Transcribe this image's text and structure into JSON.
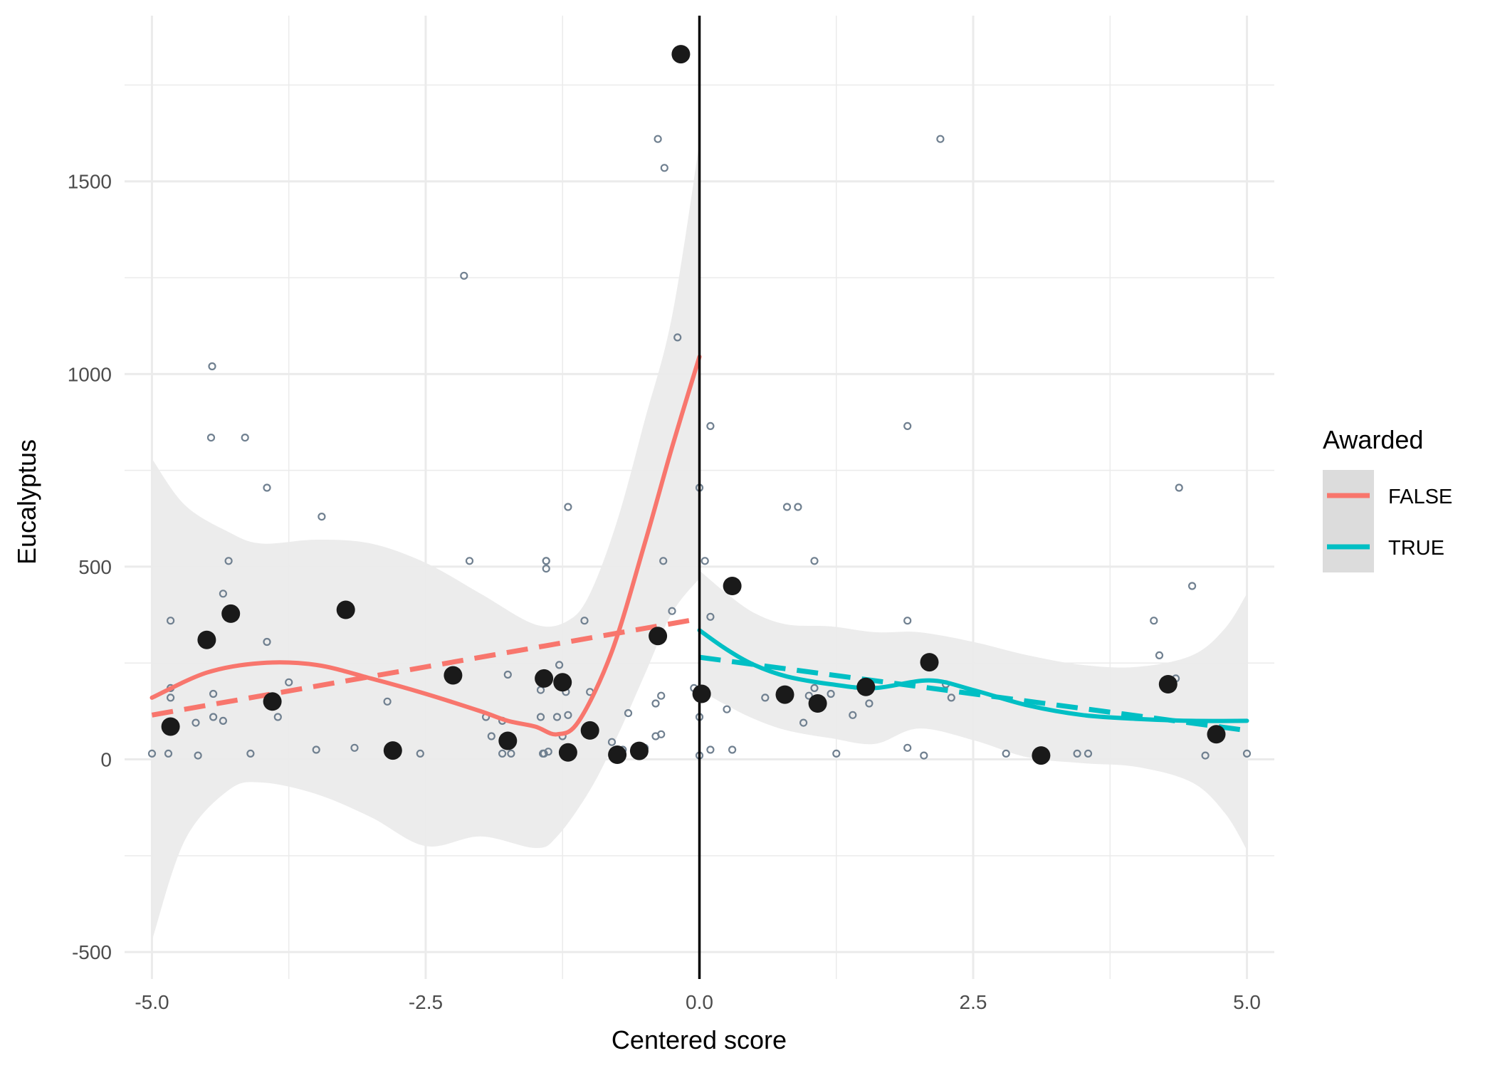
{
  "chart_data": {
    "type": "scatter",
    "xlabel": "Centered score",
    "ylabel": "Eucalyptus",
    "xlim": [
      -5.25,
      5.25
    ],
    "ylim": [
      -570,
      1930
    ],
    "x_ticks": [
      -5.0,
      -2.5,
      0.0,
      2.5,
      5.0
    ],
    "x_tick_labels": [
      "-5.0",
      "-2.5",
      "0.0",
      "2.5",
      "5.0"
    ],
    "y_ticks": [
      -500,
      0,
      500,
      1000,
      1500
    ],
    "y_tick_labels": [
      "-500",
      "0",
      "500",
      "1000",
      "1500"
    ],
    "grid": true,
    "cutoff_x": 0,
    "legend": {
      "title": "Awarded",
      "position": "right",
      "entries": [
        {
          "label": "FALSE",
          "color": "#F8766D"
        },
        {
          "label": "TRUE",
          "color": "#00BFC4"
        }
      ]
    },
    "colors": {
      "FALSE": "#F8766D",
      "TRUE": "#00BFC4",
      "band": "#EBEBEB",
      "points": "#1a1a1a",
      "raw_points": "#708090"
    },
    "raw_points": [
      [
        -5.0,
        15
      ],
      [
        -4.85,
        15
      ],
      [
        -4.83,
        185
      ],
      [
        -4.83,
        160
      ],
      [
        -4.83,
        360
      ],
      [
        -4.6,
        95
      ],
      [
        -4.58,
        10
      ],
      [
        -4.45,
        1020
      ],
      [
        -4.46,
        835
      ],
      [
        -4.44,
        170
      ],
      [
        -4.44,
        110
      ],
      [
        -4.35,
        100
      ],
      [
        -4.35,
        430
      ],
      [
        -4.3,
        515
      ],
      [
        -4.15,
        835
      ],
      [
        -4.1,
        15
      ],
      [
        -3.95,
        705
      ],
      [
        -3.95,
        305
      ],
      [
        -3.85,
        110
      ],
      [
        -3.75,
        200
      ],
      [
        -3.5,
        25
      ],
      [
        -3.45,
        630
      ],
      [
        -3.15,
        30
      ],
      [
        -2.85,
        150
      ],
      [
        -2.55,
        15
      ],
      [
        -2.15,
        1255
      ],
      [
        -2.1,
        515
      ],
      [
        -1.95,
        110
      ],
      [
        -1.9,
        60
      ],
      [
        -1.8,
        15
      ],
      [
        -1.8,
        100
      ],
      [
        -1.75,
        220
      ],
      [
        -1.72,
        15
      ],
      [
        -1.45,
        110
      ],
      [
        -1.45,
        180
      ],
      [
        -1.43,
        15
      ],
      [
        -1.42,
        15
      ],
      [
        -1.4,
        515
      ],
      [
        -1.4,
        515
      ],
      [
        -1.4,
        495
      ],
      [
        -1.38,
        20
      ],
      [
        -1.3,
        110
      ],
      [
        -1.28,
        245
      ],
      [
        -1.25,
        60
      ],
      [
        -1.22,
        175
      ],
      [
        -1.2,
        115
      ],
      [
        -1.2,
        655
      ],
      [
        -1.05,
        360
      ],
      [
        -1.0,
        175
      ],
      [
        -0.8,
        45
      ],
      [
        -0.75,
        15
      ],
      [
        -0.7,
        25
      ],
      [
        -0.65,
        120
      ],
      [
        -0.5,
        30
      ],
      [
        -0.4,
        60
      ],
      [
        -0.4,
        145
      ],
      [
        -0.38,
        1610
      ],
      [
        -0.35,
        65
      ],
      [
        -0.35,
        165
      ],
      [
        -0.33,
        515
      ],
      [
        -0.32,
        1535
      ],
      [
        -0.25,
        385
      ],
      [
        -0.2,
        1095
      ],
      [
        -0.05,
        185
      ],
      [
        0.0,
        705
      ],
      [
        0.0,
        110
      ],
      [
        0.0,
        10
      ],
      [
        0.05,
        515
      ],
      [
        0.1,
        25
      ],
      [
        0.1,
        865
      ],
      [
        0.1,
        370
      ],
      [
        0.25,
        130
      ],
      [
        0.3,
        25
      ],
      [
        0.6,
        160
      ],
      [
        0.8,
        655
      ],
      [
        0.9,
        655
      ],
      [
        0.95,
        95
      ],
      [
        1.0,
        165
      ],
      [
        1.05,
        185
      ],
      [
        1.05,
        515
      ],
      [
        1.2,
        170
      ],
      [
        1.25,
        15
      ],
      [
        1.4,
        115
      ],
      [
        1.55,
        145
      ],
      [
        1.9,
        30
      ],
      [
        1.9,
        865
      ],
      [
        1.9,
        360
      ],
      [
        2.05,
        10
      ],
      [
        2.2,
        1610
      ],
      [
        2.25,
        195
      ],
      [
        2.3,
        160
      ],
      [
        2.8,
        15
      ],
      [
        3.15,
        15
      ],
      [
        3.45,
        15
      ],
      [
        3.55,
        15
      ],
      [
        4.15,
        360
      ],
      [
        4.2,
        270
      ],
      [
        4.35,
        210
      ],
      [
        4.38,
        705
      ],
      [
        4.5,
        450
      ],
      [
        4.62,
        10
      ],
      [
        5.0,
        15
      ]
    ],
    "binned_means": [
      [
        -4.83,
        85
      ],
      [
        -4.5,
        310
      ],
      [
        -4.28,
        378
      ],
      [
        -3.9,
        150
      ],
      [
        -3.23,
        388
      ],
      [
        -2.8,
        23
      ],
      [
        -2.25,
        218
      ],
      [
        -1.75,
        48
      ],
      [
        -1.42,
        210
      ],
      [
        -1.25,
        200
      ],
      [
        -1.2,
        18
      ],
      [
        -1.0,
        75
      ],
      [
        -0.75,
        12
      ],
      [
        -0.55,
        22
      ],
      [
        -0.38,
        320
      ],
      [
        -0.17,
        1830
      ],
      [
        0.02,
        170
      ],
      [
        0.3,
        450
      ],
      [
        0.78,
        168
      ],
      [
        1.08,
        145
      ],
      [
        1.52,
        188
      ],
      [
        2.1,
        252
      ],
      [
        3.12,
        10
      ],
      [
        4.28,
        195
      ],
      [
        4.72,
        65
      ]
    ],
    "series": [
      {
        "name": "FALSE",
        "loess": [
          [
            -5.0,
            160
          ],
          [
            -4.5,
            225
          ],
          [
            -4.0,
            250
          ],
          [
            -3.5,
            245
          ],
          [
            -3.0,
            210
          ],
          [
            -2.5,
            170
          ],
          [
            -2.0,
            125
          ],
          [
            -1.75,
            100
          ],
          [
            -1.5,
            85
          ],
          [
            -1.3,
            65
          ],
          [
            -1.1,
            100
          ],
          [
            -0.8,
            280
          ],
          [
            -0.5,
            560
          ],
          [
            -0.25,
            810
          ],
          [
            0.0,
            1045
          ]
        ],
        "band_upper": [
          [
            -5.0,
            780
          ],
          [
            -4.7,
            660
          ],
          [
            -4.3,
            590
          ],
          [
            -4.0,
            560
          ],
          [
            -3.5,
            570
          ],
          [
            -3.0,
            560
          ],
          [
            -2.5,
            510
          ],
          [
            -2.0,
            430
          ],
          [
            -1.5,
            350
          ],
          [
            -1.2,
            360
          ],
          [
            -1.0,
            430
          ],
          [
            -0.75,
            620
          ],
          [
            -0.5,
            880
          ],
          [
            -0.25,
            1150
          ],
          [
            0.0,
            1600
          ]
        ],
        "band_lower": [
          [
            -5.0,
            -470
          ],
          [
            -4.7,
            -210
          ],
          [
            -4.3,
            -80
          ],
          [
            -4.0,
            -60
          ],
          [
            -3.5,
            -90
          ],
          [
            -3.0,
            -150
          ],
          [
            -2.5,
            -225
          ],
          [
            -2.0,
            -200
          ],
          [
            -1.5,
            -230
          ],
          [
            -1.3,
            -200
          ],
          [
            -1.0,
            -80
          ],
          [
            -0.75,
            60
          ],
          [
            -0.5,
            220
          ],
          [
            -0.25,
            380
          ],
          [
            0.0,
            470
          ]
        ],
        "linear": [
          [
            -5.0,
            115
          ],
          [
            0.0,
            365
          ]
        ]
      },
      {
        "name": "TRUE",
        "loess": [
          [
            0.0,
            335
          ],
          [
            0.25,
            285
          ],
          [
            0.5,
            245
          ],
          [
            0.8,
            215
          ],
          [
            1.2,
            195
          ],
          [
            1.6,
            185
          ],
          [
            2.1,
            205
          ],
          [
            2.5,
            180
          ],
          [
            3.0,
            140
          ],
          [
            3.5,
            115
          ],
          [
            4.0,
            105
          ],
          [
            4.5,
            100
          ],
          [
            5.0,
            100
          ]
        ],
        "band_upper": [
          [
            0.0,
            490
          ],
          [
            0.25,
            430
          ],
          [
            0.5,
            380
          ],
          [
            0.8,
            350
          ],
          [
            1.2,
            345
          ],
          [
            1.6,
            330
          ],
          [
            2.0,
            330
          ],
          [
            2.5,
            305
          ],
          [
            3.0,
            270
          ],
          [
            3.5,
            245
          ],
          [
            4.0,
            240
          ],
          [
            4.5,
            270
          ],
          [
            4.8,
            340
          ],
          [
            5.0,
            430
          ]
        ],
        "band_lower": [
          [
            0.0,
            180
          ],
          [
            0.25,
            140
          ],
          [
            0.5,
            105
          ],
          [
            0.8,
            75
          ],
          [
            1.2,
            55
          ],
          [
            1.6,
            40
          ],
          [
            2.0,
            80
          ],
          [
            2.5,
            50
          ],
          [
            3.0,
            5
          ],
          [
            3.5,
            -10
          ],
          [
            4.0,
            -20
          ],
          [
            4.5,
            -60
          ],
          [
            4.8,
            -140
          ],
          [
            5.0,
            -235
          ]
        ],
        "linear": [
          [
            0.0,
            265
          ],
          [
            5.0,
            75
          ]
        ]
      }
    ]
  }
}
